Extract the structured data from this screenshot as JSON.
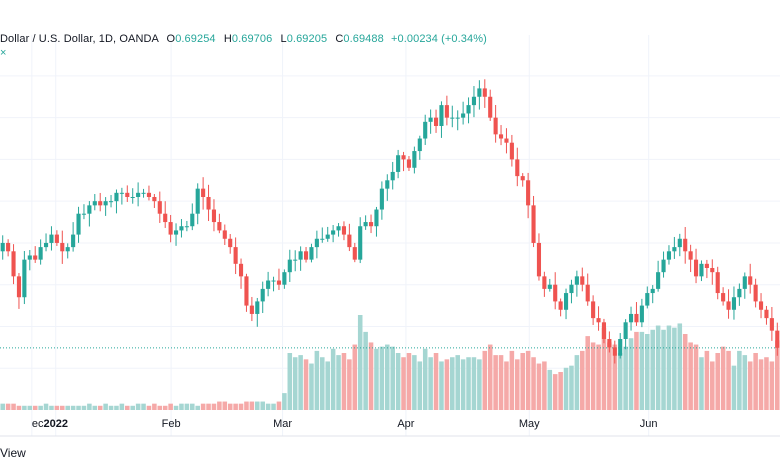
{
  "legend": {
    "symbol": "Dollar / U.S. Dollar, 1D, OANDA",
    "o_label": "O",
    "o_value": "0.69254",
    "h_label": "H",
    "h_value": "0.69706",
    "l_label": "L",
    "l_value": "0.69205",
    "c_label": "C",
    "c_value": "0.69488",
    "change": "+0.00234 (+0.34%)",
    "stray_glyph": "×"
  },
  "footer": {
    "label": "View"
  },
  "colors": {
    "up": "#26a69a",
    "down": "#ef5350",
    "vol_up": "#a5d6d2",
    "vol_down": "#f5a9a8",
    "grid": "#f0f3fa",
    "price_line": "#26a69a"
  },
  "chart_data": {
    "type": "candlestick",
    "x_ticks": [
      "ec",
      "2022",
      "Feb",
      "Mar",
      "Apr",
      "May",
      "Jun"
    ],
    "x_tick_dates": [
      "2021-12-28",
      "2022-01-03",
      "2022-02-01",
      "2022-03-01",
      "2022-04-01",
      "2022-05-02",
      "2022-06-01"
    ],
    "y_range": [
      0.68,
      0.765
    ],
    "last_price": 0.69488,
    "grid": true,
    "close_series": [
      0.72,
      0.718,
      0.712,
      0.707,
      0.716,
      0.717,
      0.716,
      0.719,
      0.72,
      0.722,
      0.72,
      0.718,
      0.719,
      0.722,
      0.727,
      0.727,
      0.729,
      0.73,
      0.729,
      0.73,
      0.73,
      0.732,
      0.732,
      0.731,
      0.731,
      0.732,
      0.732,
      0.731,
      0.73,
      0.727,
      0.725,
      0.722,
      0.723,
      0.724,
      0.724,
      0.727,
      0.733,
      0.731,
      0.728,
      0.725,
      0.723,
      0.721,
      0.719,
      0.715,
      0.712,
      0.705,
      0.703,
      0.706,
      0.709,
      0.711,
      0.711,
      0.71,
      0.713,
      0.716,
      0.716,
      0.718,
      0.716,
      0.719,
      0.721,
      0.721,
      0.722,
      0.723,
      0.724,
      0.722,
      0.719,
      0.716,
      0.724,
      0.725,
      0.724,
      0.728,
      0.733,
      0.735,
      0.737,
      0.741,
      0.74,
      0.738,
      0.742,
      0.745,
      0.749,
      0.75,
      0.748,
      0.753,
      0.75,
      0.75,
      0.75,
      0.751,
      0.753,
      0.755,
      0.757,
      0.755,
      0.75,
      0.746,
      0.745,
      0.744,
      0.74,
      0.736,
      0.735,
      0.729,
      0.72,
      0.712,
      0.709,
      0.71,
      0.706,
      0.704,
      0.708,
      0.71,
      0.712,
      0.71,
      0.706,
      0.702,
      0.701,
      0.697,
      0.695,
      0.693,
      0.697,
      0.701,
      0.703,
      0.701,
      0.705,
      0.708,
      0.709,
      0.713,
      0.716,
      0.718,
      0.719,
      0.721,
      0.718,
      0.716,
      0.712,
      0.715,
      0.714,
      0.713,
      0.708,
      0.706,
      0.704,
      0.707,
      0.709,
      0.712,
      0.71,
      0.706,
      0.704,
      0.702,
      0.699,
      0.6949
    ],
    "volume_series": [
      3,
      3,
      3,
      2,
      2,
      2,
      2,
      2,
      3,
      2,
      2,
      2,
      2,
      2,
      2,
      2,
      3,
      2,
      2,
      3,
      2,
      2,
      3,
      2,
      2,
      3,
      3,
      2,
      3,
      2,
      2,
      3,
      2,
      3,
      3,
      3,
      2,
      3,
      3,
      3,
      4,
      4,
      3,
      3,
      3,
      4,
      4,
      4,
      4,
      3,
      3,
      4,
      8,
      27,
      25,
      26,
      24,
      22,
      28,
      25,
      23,
      29,
      26,
      27,
      24,
      31,
      45,
      37,
      32,
      29,
      30,
      31,
      30,
      27,
      25,
      27,
      26,
      23,
      29,
      25,
      27,
      23,
      24,
      25,
      26,
      24,
      25,
      25,
      24,
      28,
      31,
      26,
      26,
      23,
      28,
      24,
      27,
      28,
      25,
      22,
      23,
      19,
      17,
      18,
      20,
      21,
      26,
      28,
      35,
      32,
      31,
      39,
      32,
      31,
      27,
      30,
      34,
      37,
      37,
      36,
      38,
      40,
      38,
      40,
      39,
      41,
      36,
      32,
      31,
      25,
      28,
      23,
      27,
      30,
      28,
      21,
      28,
      26,
      23,
      27,
      24,
      25,
      23,
      33,
      30,
      22
    ]
  }
}
